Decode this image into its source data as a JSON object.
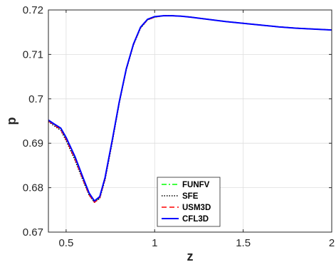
{
  "chart_data": {
    "type": "line",
    "title": "",
    "xlabel": "z",
    "ylabel": "p",
    "xlim": [
      0.4,
      2.0
    ],
    "ylim": [
      0.67,
      0.72
    ],
    "xticks": [
      0.5,
      1,
      1.5,
      2
    ],
    "xtick_labels": [
      "0.5",
      "1",
      "1.5",
      "2"
    ],
    "yticks": [
      0.67,
      0.68,
      0.69,
      0.7,
      0.71,
      0.72
    ],
    "ytick_labels": [
      "0.67",
      "0.68",
      "0.69",
      "0.7",
      "0.71",
      "0.72"
    ],
    "grid": true,
    "legend_position": "lower-center",
    "series": [
      {
        "name": "FUNFV",
        "color": "#00ff00",
        "dash": "dashdot",
        "x": [
          0.4,
          0.43,
          0.47,
          0.5,
          0.55,
          0.6,
          0.63,
          0.66,
          0.69,
          0.72,
          0.76,
          0.8,
          0.84,
          0.88,
          0.92,
          0.96,
          1.0,
          1.05,
          1.1,
          1.15,
          1.2,
          1.3,
          1.4,
          1.5,
          1.6,
          1.7,
          1.8,
          1.9,
          2.0
        ],
        "y": [
          0.6951,
          0.6943,
          0.6933,
          0.6912,
          0.6868,
          0.6816,
          0.6786,
          0.6768,
          0.6778,
          0.6822,
          0.6905,
          0.6992,
          0.7067,
          0.7122,
          0.716,
          0.7178,
          0.7184,
          0.7187,
          0.7187,
          0.7186,
          0.7184,
          0.7179,
          0.7174,
          0.717,
          0.7166,
          0.7162,
          0.7159,
          0.7157,
          0.7155
        ]
      },
      {
        "name": "SFE",
        "color": "#000000",
        "dash": "dotted",
        "x": [
          0.4,
          0.43,
          0.47,
          0.5,
          0.55,
          0.6,
          0.63,
          0.66,
          0.69,
          0.72,
          0.76,
          0.8,
          0.84,
          0.88,
          0.92,
          0.96,
          1.0,
          1.05,
          1.1,
          1.15,
          1.2,
          1.3,
          1.4,
          1.5,
          1.6,
          1.7,
          1.8,
          1.9,
          2.0
        ],
        "y": [
          0.6949,
          0.694,
          0.6929,
          0.6906,
          0.6862,
          0.6812,
          0.6783,
          0.6767,
          0.6776,
          0.6818,
          0.6901,
          0.699,
          0.7066,
          0.7121,
          0.7159,
          0.7178,
          0.7184,
          0.7187,
          0.7187,
          0.7186,
          0.7184,
          0.7179,
          0.7174,
          0.717,
          0.7166,
          0.7162,
          0.7159,
          0.7157,
          0.7155
        ]
      },
      {
        "name": "USM3D",
        "color": "#ff0000",
        "dash": "dashed",
        "x": [
          0.4,
          0.43,
          0.47,
          0.5,
          0.55,
          0.6,
          0.63,
          0.66,
          0.69,
          0.72,
          0.76,
          0.8,
          0.84,
          0.88,
          0.92,
          0.96,
          1.0,
          1.05,
          1.1,
          1.15,
          1.2,
          1.3,
          1.4,
          1.5,
          1.6,
          1.7,
          1.8,
          1.9,
          2.0
        ],
        "y": [
          0.695,
          0.6942,
          0.6931,
          0.6909,
          0.6865,
          0.6814,
          0.6784,
          0.6767,
          0.6777,
          0.682,
          0.6904,
          0.6992,
          0.7067,
          0.7122,
          0.716,
          0.7178,
          0.7184,
          0.7187,
          0.7187,
          0.7186,
          0.7184,
          0.7179,
          0.7174,
          0.717,
          0.7166,
          0.7162,
          0.7159,
          0.7157,
          0.7155
        ]
      },
      {
        "name": "CFL3D",
        "color": "#0000ff",
        "dash": "solid",
        "x": [
          0.4,
          0.43,
          0.47,
          0.5,
          0.55,
          0.6,
          0.63,
          0.66,
          0.69,
          0.72,
          0.76,
          0.8,
          0.84,
          0.88,
          0.92,
          0.96,
          1.0,
          1.05,
          1.1,
          1.15,
          1.2,
          1.3,
          1.4,
          1.5,
          1.6,
          1.7,
          1.8,
          1.9,
          2.0
        ],
        "y": [
          0.6952,
          0.6944,
          0.6934,
          0.6913,
          0.687,
          0.6818,
          0.6788,
          0.677,
          0.678,
          0.6823,
          0.6906,
          0.6993,
          0.7068,
          0.7123,
          0.7161,
          0.7179,
          0.7185,
          0.7187,
          0.7187,
          0.7186,
          0.7184,
          0.7179,
          0.7174,
          0.717,
          0.7166,
          0.7162,
          0.7159,
          0.7157,
          0.7155
        ]
      }
    ]
  }
}
